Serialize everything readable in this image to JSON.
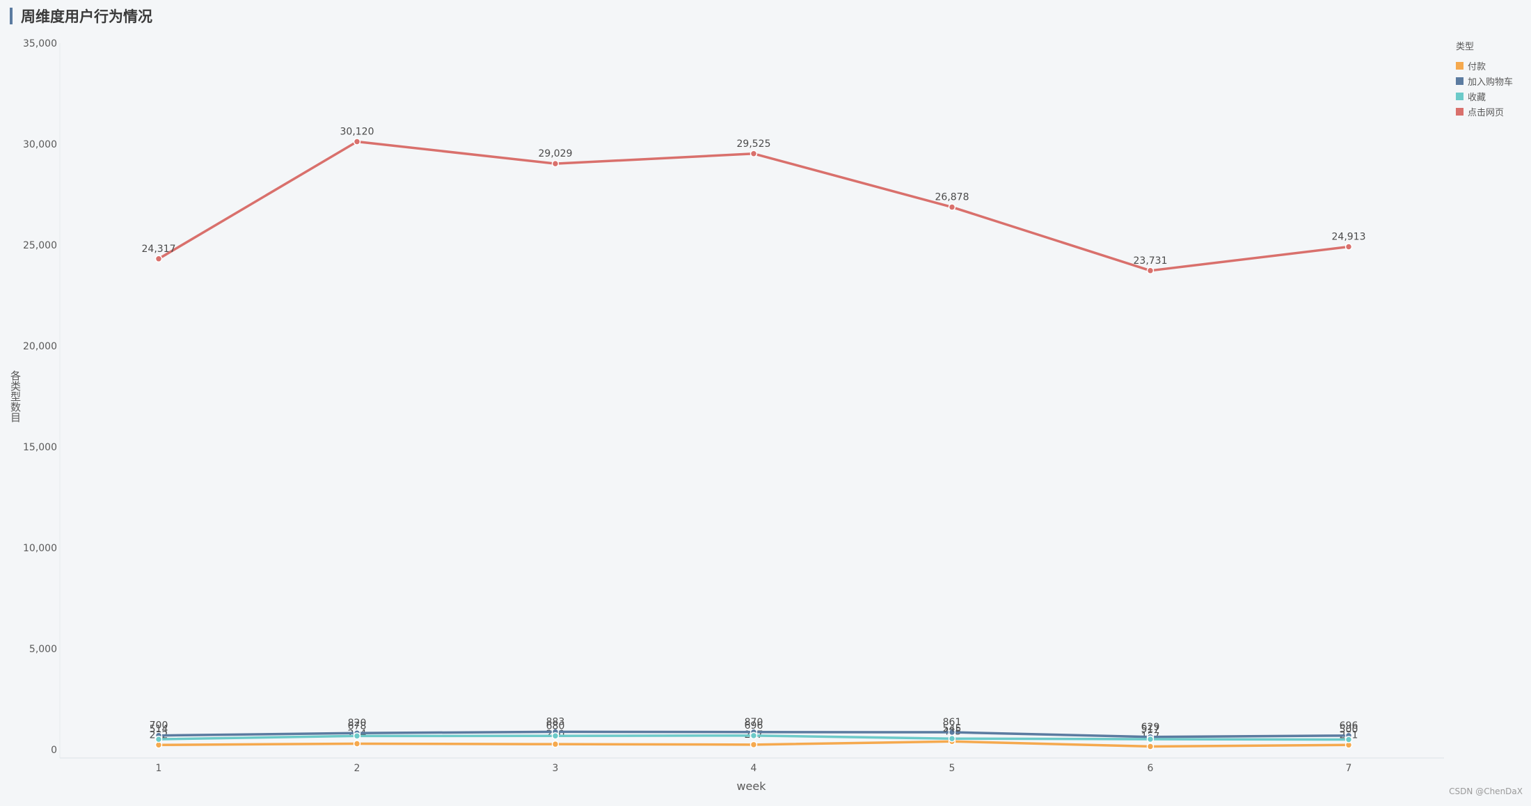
{
  "title": "周维度用户行为情况",
  "watermark": "CSDN @ChenDaX",
  "chart_data": {
    "type": "line",
    "categories": [
      "1",
      "2",
      "3",
      "4",
      "5",
      "6",
      "7"
    ],
    "xlabel": "week",
    "ylabel": "各类型数目",
    "ylim": [
      0,
      35000
    ],
    "yticks": [
      "0",
      "5,000",
      "10,000",
      "15,000",
      "20,000",
      "25,000",
      "30,000",
      "35,000"
    ],
    "grid": false,
    "legend_title": "类型",
    "legend_position": "top-right",
    "series": [
      {
        "name": "付款",
        "color": "#f5a94e",
        "values": [
          232,
          294,
          270,
          247,
          405,
          157,
          231
        ],
        "labels": [
          "232",
          "294",
          "270",
          "247",
          "405",
          "157",
          "231"
        ]
      },
      {
        "name": "加入购物车",
        "color": "#5b7ba0",
        "values": [
          700,
          820,
          883,
          870,
          861,
          629,
          696
        ],
        "labels": [
          "700",
          "820",
          "883",
          "870",
          "861",
          "629",
          "696"
        ]
      },
      {
        "name": "收藏",
        "color": "#6ccac9",
        "values": [
          514,
          678,
          680,
          696,
          545,
          517,
          500
        ],
        "labels": [
          "514",
          "678",
          "680",
          "696",
          "545",
          "517",
          "500"
        ]
      },
      {
        "name": "点击网页",
        "color": "#d9706c",
        "values": [
          24317,
          30120,
          29029,
          29525,
          26878,
          23731,
          24913
        ],
        "labels": [
          "24,317",
          "30,120",
          "29,029",
          "29,525",
          "26,878",
          "23,731",
          "24,913"
        ]
      }
    ]
  }
}
